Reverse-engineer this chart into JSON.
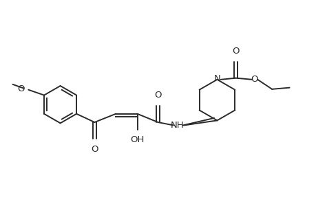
{
  "bg_color": "#ffffff",
  "line_color": "#2a2a2a",
  "line_width": 1.4,
  "font_size": 9.5,
  "figsize": [
    4.6,
    3.0
  ],
  "dpi": 100,
  "xlim": [
    0,
    10.5
  ],
  "ylim": [
    0.5,
    5.2
  ]
}
